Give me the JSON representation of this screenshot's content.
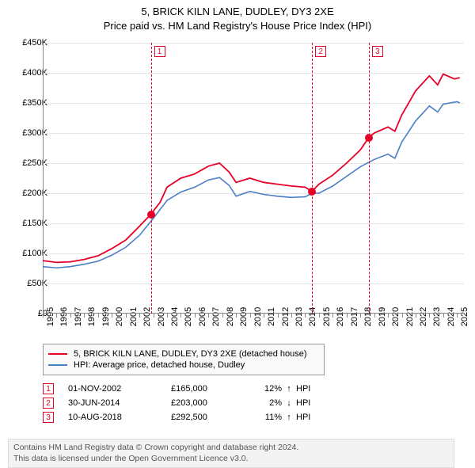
{
  "title_line1": "5, BRICK KILN LANE, DUDLEY, DY3 2XE",
  "title_line2": "Price paid vs. HM Land Registry's House Price Index (HPI)",
  "chart": {
    "type": "line",
    "x_range": [
      1995,
      2025.5
    ],
    "y_range": [
      0,
      450000
    ],
    "y_ticks": [
      0,
      50000,
      100000,
      150000,
      200000,
      250000,
      300000,
      350000,
      400000,
      450000
    ],
    "y_tick_labels": [
      "£0",
      "£50K",
      "£100K",
      "£150K",
      "£200K",
      "£250K",
      "£300K",
      "£350K",
      "£400K",
      "£450K"
    ],
    "x_ticks": [
      1995,
      1996,
      1997,
      1998,
      1999,
      2000,
      2001,
      2002,
      2003,
      2004,
      2005,
      2006,
      2007,
      2008,
      2009,
      2010,
      2011,
      2012,
      2013,
      2014,
      2015,
      2016,
      2017,
      2018,
      2019,
      2020,
      2021,
      2022,
      2023,
      2024,
      2025
    ],
    "grid_color": "#e6e6e6",
    "axis_color": "#888888",
    "background_color": "#ffffff",
    "series": [
      {
        "name": "property",
        "color": "#e60026",
        "width": 1.8,
        "points": [
          [
            1995.0,
            88000
          ],
          [
            1996.0,
            85000
          ],
          [
            1997.0,
            86000
          ],
          [
            1998.0,
            90000
          ],
          [
            1999.0,
            96000
          ],
          [
            2000.0,
            108000
          ],
          [
            2001.0,
            122000
          ],
          [
            2002.0,
            145000
          ],
          [
            2002.83,
            165000
          ],
          [
            2003.5,
            185000
          ],
          [
            2004.0,
            210000
          ],
          [
            2005.0,
            225000
          ],
          [
            2006.0,
            232000
          ],
          [
            2007.0,
            245000
          ],
          [
            2007.8,
            250000
          ],
          [
            2008.5,
            235000
          ],
          [
            2009.0,
            218000
          ],
          [
            2010.0,
            225000
          ],
          [
            2011.0,
            218000
          ],
          [
            2012.0,
            215000
          ],
          [
            2013.0,
            212000
          ],
          [
            2014.0,
            210000
          ],
          [
            2014.5,
            203000
          ],
          [
            2015.0,
            215000
          ],
          [
            2016.0,
            230000
          ],
          [
            2017.0,
            250000
          ],
          [
            2018.0,
            272000
          ],
          [
            2018.61,
            292500
          ],
          [
            2019.0,
            300000
          ],
          [
            2020.0,
            310000
          ],
          [
            2020.5,
            303000
          ],
          [
            2021.0,
            330000
          ],
          [
            2022.0,
            370000
          ],
          [
            2023.0,
            395000
          ],
          [
            2023.6,
            380000
          ],
          [
            2024.0,
            398000
          ],
          [
            2024.8,
            390000
          ],
          [
            2025.2,
            392000
          ]
        ]
      },
      {
        "name": "hpi",
        "color": "#4a7fc4",
        "width": 1.6,
        "points": [
          [
            1995.0,
            78000
          ],
          [
            1996.0,
            76000
          ],
          [
            1997.0,
            78000
          ],
          [
            1998.0,
            82000
          ],
          [
            1999.0,
            87000
          ],
          [
            2000.0,
            97000
          ],
          [
            2001.0,
            110000
          ],
          [
            2002.0,
            130000
          ],
          [
            2003.0,
            158000
          ],
          [
            2004.0,
            188000
          ],
          [
            2005.0,
            202000
          ],
          [
            2006.0,
            210000
          ],
          [
            2007.0,
            222000
          ],
          [
            2007.8,
            226000
          ],
          [
            2008.5,
            213000
          ],
          [
            2009.0,
            195000
          ],
          [
            2010.0,
            203000
          ],
          [
            2011.0,
            198000
          ],
          [
            2012.0,
            195000
          ],
          [
            2013.0,
            193000
          ],
          [
            2014.0,
            194000
          ],
          [
            2014.5,
            200000
          ],
          [
            2015.0,
            200000
          ],
          [
            2016.0,
            212000
          ],
          [
            2017.0,
            228000
          ],
          [
            2018.0,
            244000
          ],
          [
            2019.0,
            256000
          ],
          [
            2020.0,
            265000
          ],
          [
            2020.5,
            258000
          ],
          [
            2021.0,
            285000
          ],
          [
            2022.0,
            320000
          ],
          [
            2023.0,
            345000
          ],
          [
            2023.6,
            335000
          ],
          [
            2024.0,
            348000
          ],
          [
            2025.0,
            352000
          ],
          [
            2025.2,
            350000
          ]
        ]
      }
    ],
    "vlines": [
      {
        "x": 2002.83,
        "badge": "1",
        "marker_y": 165000
      },
      {
        "x": 2014.5,
        "badge": "2",
        "marker_y": 203000
      },
      {
        "x": 2018.61,
        "badge": "3",
        "marker_y": 292500
      }
    ]
  },
  "legend": {
    "entries": [
      {
        "color": "#e60026",
        "label": "5, BRICK KILN LANE, DUDLEY, DY3 2XE (detached house)"
      },
      {
        "color": "#4a7fc4",
        "label": "HPI: Average price, detached house, Dudley"
      }
    ]
  },
  "transactions": [
    {
      "badge": "1",
      "date": "01-NOV-2002",
      "price": "£165,000",
      "pct": "12%",
      "arrow": "↑",
      "label": "HPI"
    },
    {
      "badge": "2",
      "date": "30-JUN-2014",
      "price": "£203,000",
      "pct": "2%",
      "arrow": "↓",
      "label": "HPI"
    },
    {
      "badge": "3",
      "date": "10-AUG-2018",
      "price": "£292,500",
      "pct": "11%",
      "arrow": "↑",
      "label": "HPI"
    }
  ],
  "footer_line1": "Contains HM Land Registry data © Crown copyright and database right 2024.",
  "footer_line2": "This data is licensed under the Open Government Licence v3.0."
}
